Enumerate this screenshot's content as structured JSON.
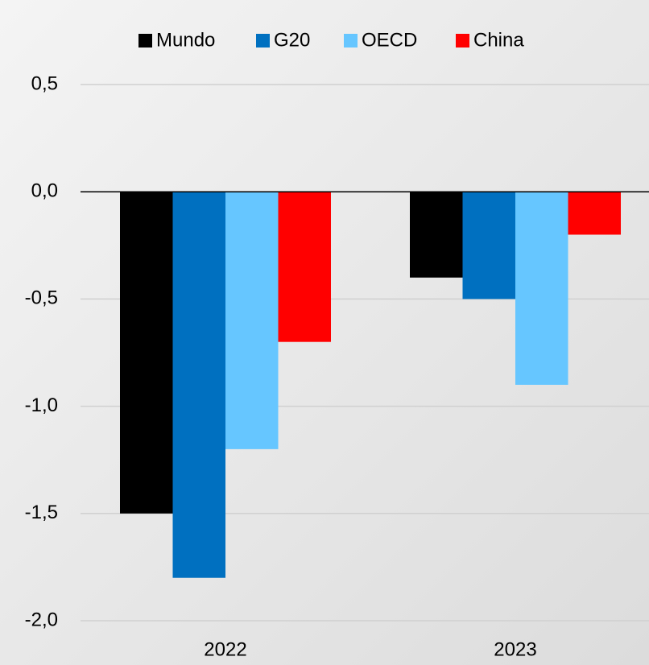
{
  "chart_data": {
    "type": "bar",
    "categories": [
      "2022",
      "2023"
    ],
    "series": [
      {
        "name": "Mundo",
        "color": "#000000",
        "values": [
          -1.5,
          -0.4
        ]
      },
      {
        "name": "G20",
        "color": "#0070c0",
        "values": [
          -1.8,
          -0.5
        ]
      },
      {
        "name": "OECD",
        "color": "#66c6ff",
        "values": [
          -1.2,
          -0.9
        ]
      },
      {
        "name": "China",
        "color": "#ff0000",
        "values": [
          -0.7,
          -0.2
        ]
      }
    ],
    "ylim": [
      -2.0,
      0.5
    ],
    "yticks": [
      {
        "value": -2.0,
        "label": "-2,0"
      },
      {
        "value": -1.5,
        "label": "-1,5"
      },
      {
        "value": -1.0,
        "label": "-1,0"
      },
      {
        "value": -0.5,
        "label": "-0,5"
      },
      {
        "value": 0.0,
        "label": "0,0"
      },
      {
        "value": 0.5,
        "label": "0,5"
      }
    ],
    "grid": true,
    "legend": "top"
  }
}
